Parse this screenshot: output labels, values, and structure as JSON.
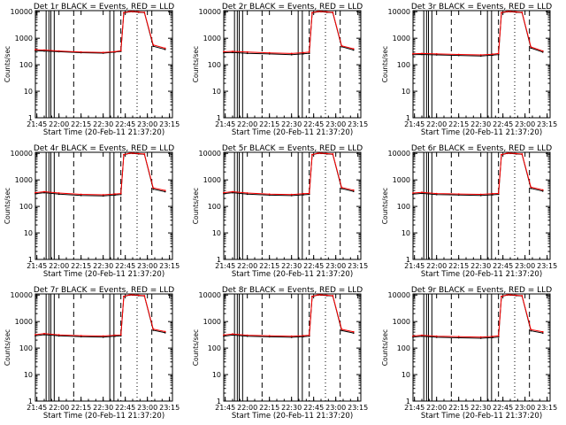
{
  "figure": {
    "panel_label_template": "Det {n}r BLACK = Events, RED = LLD",
    "xlabel": "Start Time (20-Feb-11 21:37:20)",
    "ylabel": "Counts/sec"
  },
  "chart_data": [
    {
      "det": 1,
      "title": "Det 1r BLACK = Events, RED = LLD",
      "type": "line",
      "ylog": true,
      "ylim": [
        1,
        11000
      ],
      "xlim_minutes": [
        1304,
        1397
      ],
      "xticks": [
        "21:45",
        "22:00",
        "22:15",
        "22:30",
        "22:45",
        "23:00",
        "23:15"
      ],
      "yticks": [
        "1",
        "10",
        "100",
        "1000",
        "10000"
      ],
      "xlabel": "Start Time (20-Feb-11 21:37:20)",
      "ylabel": "Counts/sec",
      "series": [
        {
          "name": "Events",
          "color": "#000000",
          "x": [
            1304,
            1310,
            1320,
            1335,
            1350,
            1358,
            1362,
            1364,
            1368,
            1370,
            1374,
            1378,
            1384,
            1392
          ],
          "y": [
            340,
            330,
            310,
            285,
            275,
            300,
            320,
            9000,
            10000,
            10000,
            9500,
            9300,
            500,
            380
          ]
        },
        {
          "name": "LLD",
          "color": "#ff0000",
          "x": [
            1304,
            1310,
            1320,
            1335,
            1350,
            1358,
            1362,
            1364,
            1368,
            1370,
            1374,
            1378,
            1384,
            1392
          ],
          "y": [
            370,
            360,
            330,
            300,
            290,
            310,
            340,
            9200,
            10200,
            10200,
            9800,
            9400,
            560,
            420
          ]
        }
      ]
    },
    {
      "det": 2,
      "title": "Det 2r BLACK = Events, RED = LLD",
      "type": "line",
      "ylog": true,
      "ylim": [
        1,
        11000
      ],
      "xlim_minutes": [
        1304,
        1397
      ],
      "xticks": [
        "21:45",
        "22:00",
        "22:15",
        "22:30",
        "22:45",
        "23:00",
        "23:15"
      ],
      "yticks": [
        "1",
        "10",
        "100",
        "1000",
        "10000"
      ],
      "xlabel": "Start Time (20-Feb-11 21:37:20)",
      "ylabel": "Counts/sec",
      "series": [
        {
          "name": "Events",
          "color": "#000000",
          "x": [
            1304,
            1310,
            1320,
            1335,
            1350,
            1358,
            1362,
            1364,
            1368,
            1370,
            1374,
            1378,
            1384,
            1392
          ],
          "y": [
            280,
            290,
            270,
            255,
            240,
            260,
            270,
            9000,
            10000,
            10000,
            9500,
            9300,
            480,
            360
          ]
        },
        {
          "name": "LLD",
          "color": "#ff0000",
          "x": [
            1304,
            1310,
            1320,
            1335,
            1350,
            1358,
            1362,
            1364,
            1368,
            1370,
            1374,
            1378,
            1384,
            1392
          ],
          "y": [
            310,
            320,
            300,
            280,
            265,
            285,
            300,
            9200,
            10200,
            10200,
            9800,
            9400,
            520,
            400
          ]
        }
      ]
    },
    {
      "det": 3,
      "title": "Det 3r BLACK = Events, RED = LLD",
      "type": "line",
      "ylog": true,
      "ylim": [
        1,
        11000
      ],
      "xlim_minutes": [
        1304,
        1397
      ],
      "xticks": [
        "21:45",
        "22:00",
        "22:15",
        "22:30",
        "22:45",
        "23:00",
        "23:15"
      ],
      "yticks": [
        "1",
        "10",
        "100",
        "1000",
        "10000"
      ],
      "xlabel": "Start Time (20-Feb-11 21:37:20)",
      "ylabel": "Counts/sec",
      "series": [
        {
          "name": "Events",
          "color": "#000000",
          "x": [
            1304,
            1310,
            1320,
            1335,
            1350,
            1358,
            1362,
            1364,
            1368,
            1370,
            1374,
            1378,
            1384,
            1392
          ],
          "y": [
            240,
            245,
            235,
            225,
            215,
            230,
            240,
            9000,
            10000,
            10000,
            9500,
            9300,
            430,
            300
          ]
        },
        {
          "name": "LLD",
          "color": "#ff0000",
          "x": [
            1304,
            1310,
            1320,
            1335,
            1350,
            1358,
            1362,
            1364,
            1368,
            1370,
            1374,
            1378,
            1384,
            1392
          ],
          "y": [
            260,
            265,
            255,
            245,
            235,
            250,
            265,
            9200,
            10200,
            10200,
            9800,
            9400,
            470,
            330
          ]
        }
      ]
    },
    {
      "det": 4,
      "title": "Det 4r BLACK = Events, RED = LLD",
      "type": "line",
      "ylog": true,
      "ylim": [
        1,
        11000
      ],
      "xlim_minutes": [
        1304,
        1397
      ],
      "xticks": [
        "21:45",
        "22:00",
        "22:15",
        "22:30",
        "22:45",
        "23:00",
        "23:15"
      ],
      "yticks": [
        "1",
        "10",
        "100",
        "1000",
        "10000"
      ],
      "xlabel": "Start Time (20-Feb-11 21:37:20)",
      "ylabel": "Counts/sec",
      "series": [
        {
          "name": "Events",
          "color": "#000000",
          "x": [
            1304,
            1310,
            1320,
            1335,
            1350,
            1358,
            1362,
            1364,
            1368,
            1370,
            1374,
            1378,
            1384,
            1392
          ],
          "y": [
            300,
            330,
            290,
            260,
            250,
            270,
            280,
            8800,
            10000,
            10000,
            9500,
            9300,
            450,
            360
          ]
        },
        {
          "name": "LLD",
          "color": "#ff0000",
          "x": [
            1304,
            1310,
            1320,
            1335,
            1350,
            1358,
            1362,
            1364,
            1368,
            1370,
            1374,
            1378,
            1384,
            1392
          ],
          "y": [
            330,
            360,
            320,
            285,
            275,
            295,
            305,
            9000,
            10200,
            10200,
            9800,
            9400,
            500,
            400
          ]
        }
      ]
    },
    {
      "det": 5,
      "title": "Det 5r BLACK = Events, RED = LLD",
      "type": "line",
      "ylog": true,
      "ylim": [
        1,
        11000
      ],
      "xlim_minutes": [
        1304,
        1397
      ],
      "xticks": [
        "21:45",
        "22:00",
        "22:15",
        "22:30",
        "22:45",
        "23:00",
        "23:15"
      ],
      "yticks": [
        "1",
        "10",
        "100",
        "1000",
        "10000"
      ],
      "xlabel": "Start Time (20-Feb-11 21:37:20)",
      "ylabel": "Counts/sec",
      "series": [
        {
          "name": "Events",
          "color": "#000000",
          "x": [
            1304,
            1310,
            1320,
            1335,
            1350,
            1358,
            1362,
            1364,
            1368,
            1370,
            1374,
            1378,
            1384,
            1392
          ],
          "y": [
            300,
            330,
            290,
            265,
            255,
            275,
            285,
            8800,
            10000,
            10000,
            9500,
            9300,
            470,
            370
          ]
        },
        {
          "name": "LLD",
          "color": "#ff0000",
          "x": [
            1304,
            1310,
            1320,
            1335,
            1350,
            1358,
            1362,
            1364,
            1368,
            1370,
            1374,
            1378,
            1384,
            1392
          ],
          "y": [
            330,
            360,
            320,
            290,
            280,
            300,
            310,
            9000,
            10200,
            10200,
            9800,
            9400,
            520,
            410
          ]
        }
      ]
    },
    {
      "det": 6,
      "title": "Det 6r BLACK = Events, RED = LLD",
      "type": "line",
      "ylog": true,
      "ylim": [
        1,
        11000
      ],
      "xlim_minutes": [
        1304,
        1397
      ],
      "xticks": [
        "21:45",
        "22:00",
        "22:15",
        "22:30",
        "22:45",
        "23:00",
        "23:15"
      ],
      "yticks": [
        "1",
        "10",
        "100",
        "1000",
        "10000"
      ],
      "xlabel": "Start Time (20-Feb-11 21:37:20)",
      "ylabel": "Counts/sec",
      "series": [
        {
          "name": "Events",
          "color": "#000000",
          "x": [
            1304,
            1310,
            1320,
            1335,
            1350,
            1358,
            1362,
            1364,
            1368,
            1370,
            1374,
            1378,
            1384,
            1392
          ],
          "y": [
            290,
            310,
            280,
            270,
            260,
            275,
            285,
            8800,
            10000,
            10000,
            9500,
            9300,
            480,
            380
          ]
        },
        {
          "name": "LLD",
          "color": "#ff0000",
          "x": [
            1304,
            1310,
            1320,
            1335,
            1350,
            1358,
            1362,
            1364,
            1368,
            1370,
            1374,
            1378,
            1384,
            1392
          ],
          "y": [
            320,
            340,
            305,
            295,
            285,
            300,
            310,
            9000,
            10200,
            10200,
            9800,
            9400,
            530,
            420
          ]
        }
      ]
    },
    {
      "det": 7,
      "title": "Det 7r BLACK = Events, RED = LLD",
      "type": "line",
      "ylog": true,
      "ylim": [
        1,
        11000
      ],
      "xlim_minutes": [
        1304,
        1397
      ],
      "xticks": [
        "21:45",
        "22:00",
        "22:15",
        "22:30",
        "22:45",
        "23:00",
        "23:15"
      ],
      "yticks": [
        "1",
        "10",
        "100",
        "1000",
        "10000"
      ],
      "xlabel": "Start Time (20-Feb-11 21:37:20)",
      "ylabel": "Counts/sec",
      "series": [
        {
          "name": "Events",
          "color": "#000000",
          "x": [
            1304,
            1310,
            1320,
            1335,
            1350,
            1358,
            1362,
            1364,
            1368,
            1370,
            1374,
            1378,
            1384,
            1392
          ],
          "y": [
            290,
            320,
            290,
            270,
            260,
            280,
            290,
            8800,
            10000,
            10000,
            9500,
            9300,
            470,
            380
          ]
        },
        {
          "name": "LLD",
          "color": "#ff0000",
          "x": [
            1304,
            1310,
            1320,
            1335,
            1350,
            1358,
            1362,
            1364,
            1368,
            1370,
            1374,
            1378,
            1384,
            1392
          ],
          "y": [
            320,
            350,
            315,
            295,
            285,
            305,
            315,
            9000,
            10200,
            10200,
            9800,
            9400,
            520,
            420
          ]
        }
      ]
    },
    {
      "det": 8,
      "title": "Det 8r BLACK = Events, RED = LLD",
      "type": "line",
      "ylog": true,
      "ylim": [
        1,
        11000
      ],
      "xlim_minutes": [
        1304,
        1397
      ],
      "xticks": [
        "21:45",
        "22:00",
        "22:15",
        "22:30",
        "22:45",
        "23:00",
        "23:15"
      ],
      "yticks": [
        "1",
        "10",
        "100",
        "1000",
        "10000"
      ],
      "xlabel": "Start Time (20-Feb-11 21:37:20)",
      "ylabel": "Counts/sec",
      "series": [
        {
          "name": "Events",
          "color": "#000000",
          "x": [
            1304,
            1310,
            1320,
            1335,
            1350,
            1358,
            1362,
            1364,
            1368,
            1370,
            1374,
            1378,
            1384,
            1392
          ],
          "y": [
            280,
            310,
            280,
            265,
            255,
            270,
            280,
            8800,
            10000,
            10000,
            9500,
            9300,
            460,
            370
          ]
        },
        {
          "name": "LLD",
          "color": "#ff0000",
          "x": [
            1304,
            1310,
            1320,
            1335,
            1350,
            1358,
            1362,
            1364,
            1368,
            1370,
            1374,
            1378,
            1384,
            1392
          ],
          "y": [
            310,
            340,
            305,
            290,
            280,
            295,
            305,
            9000,
            10200,
            10200,
            9800,
            9400,
            510,
            410
          ]
        }
      ]
    },
    {
      "det": 9,
      "title": "Det 9r BLACK = Events, RED = LLD",
      "type": "line",
      "ylog": true,
      "ylim": [
        1,
        11000
      ],
      "xlim_minutes": [
        1304,
        1397
      ],
      "xticks": [
        "21:45",
        "22:00",
        "22:15",
        "22:30",
        "22:45",
        "23:00",
        "23:15"
      ],
      "yticks": [
        "1",
        "10",
        "100",
        "1000",
        "10000"
      ],
      "xlabel": "Start Time (20-Feb-11 21:37:20)",
      "ylabel": "Counts/sec",
      "series": [
        {
          "name": "Events",
          "color": "#000000",
          "x": [
            1304,
            1310,
            1320,
            1335,
            1350,
            1358,
            1362,
            1364,
            1368,
            1370,
            1374,
            1378,
            1384,
            1392
          ],
          "y": [
            260,
            280,
            255,
            245,
            235,
            250,
            260,
            8800,
            10000,
            10000,
            9500,
            9300,
            450,
            370
          ]
        },
        {
          "name": "LLD",
          "color": "#ff0000",
          "x": [
            1304,
            1310,
            1320,
            1335,
            1350,
            1358,
            1362,
            1364,
            1368,
            1370,
            1374,
            1378,
            1384,
            1392
          ],
          "y": [
            285,
            305,
            280,
            270,
            260,
            275,
            290,
            9000,
            10200,
            10200,
            9800,
            9400,
            500,
            410
          ]
        }
      ]
    }
  ],
  "markers": {
    "solid_minutes": [
      1311.3,
      1313.2,
      1314.5,
      1316.8,
      1354.5,
      1357.3
    ],
    "dashed_minutes": [
      1330,
      1362,
      1383
    ],
    "dotted_minutes": [
      1373
    ]
  }
}
